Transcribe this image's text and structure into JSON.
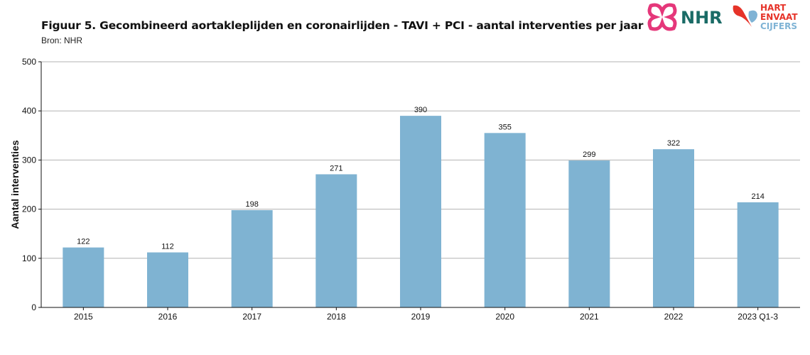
{
  "header": {
    "title": "Figuur 5. Gecombineerd aortakleplijden en coronairlijden - TAVI + PCI - aantal interventies per jaar",
    "subtitle": "Bron: NHR"
  },
  "logos": {
    "nhr_text": "NHR",
    "hvc_line1": "HART",
    "hvc_line2": "ENVAAT",
    "hvc_line3": "CIJFERS",
    "colors": {
      "pink": "#e5377a",
      "teal": "#1a6b66",
      "red": "#e63329",
      "lightblue": "#7fb3d5"
    }
  },
  "chart_data": {
    "type": "bar",
    "categories": [
      "2015",
      "2016",
      "2017",
      "2018",
      "2019",
      "2020",
      "2021",
      "2022",
      "2023 Q1-3"
    ],
    "values": [
      122,
      112,
      198,
      271,
      390,
      355,
      299,
      322,
      214
    ],
    "ylabel": "Aantal interventies",
    "xlabel": "",
    "ylim": [
      0,
      500
    ],
    "yticks": [
      0,
      100,
      200,
      300,
      400,
      500
    ],
    "bar_color": "#7fb3d2",
    "grid": true,
    "legend": "none"
  }
}
